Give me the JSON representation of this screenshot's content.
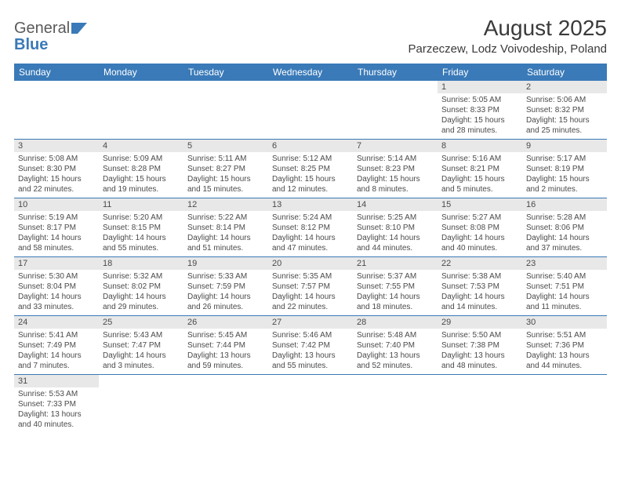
{
  "brand": {
    "part1": "General",
    "part2": "Blue"
  },
  "title": "August 2025",
  "location": "Parzeczew, Lodz Voivodeship, Poland",
  "colors": {
    "header_bg": "#3a7ab8",
    "header_text": "#ffffff",
    "daynum_bg": "#e8e8e8",
    "text": "#4a4a4a",
    "border": "#3a7ab8"
  },
  "day_labels": [
    "Sunday",
    "Monday",
    "Tuesday",
    "Wednesday",
    "Thursday",
    "Friday",
    "Saturday"
  ],
  "weeks": [
    [
      null,
      null,
      null,
      null,
      null,
      {
        "n": "1",
        "sr": "Sunrise: 5:05 AM",
        "ss": "Sunset: 8:33 PM",
        "d1": "Daylight: 15 hours",
        "d2": "and 28 minutes."
      },
      {
        "n": "2",
        "sr": "Sunrise: 5:06 AM",
        "ss": "Sunset: 8:32 PM",
        "d1": "Daylight: 15 hours",
        "d2": "and 25 minutes."
      }
    ],
    [
      {
        "n": "3",
        "sr": "Sunrise: 5:08 AM",
        "ss": "Sunset: 8:30 PM",
        "d1": "Daylight: 15 hours",
        "d2": "and 22 minutes."
      },
      {
        "n": "4",
        "sr": "Sunrise: 5:09 AM",
        "ss": "Sunset: 8:28 PM",
        "d1": "Daylight: 15 hours",
        "d2": "and 19 minutes."
      },
      {
        "n": "5",
        "sr": "Sunrise: 5:11 AM",
        "ss": "Sunset: 8:27 PM",
        "d1": "Daylight: 15 hours",
        "d2": "and 15 minutes."
      },
      {
        "n": "6",
        "sr": "Sunrise: 5:12 AM",
        "ss": "Sunset: 8:25 PM",
        "d1": "Daylight: 15 hours",
        "d2": "and 12 minutes."
      },
      {
        "n": "7",
        "sr": "Sunrise: 5:14 AM",
        "ss": "Sunset: 8:23 PM",
        "d1": "Daylight: 15 hours",
        "d2": "and 8 minutes."
      },
      {
        "n": "8",
        "sr": "Sunrise: 5:16 AM",
        "ss": "Sunset: 8:21 PM",
        "d1": "Daylight: 15 hours",
        "d2": "and 5 minutes."
      },
      {
        "n": "9",
        "sr": "Sunrise: 5:17 AM",
        "ss": "Sunset: 8:19 PM",
        "d1": "Daylight: 15 hours",
        "d2": "and 2 minutes."
      }
    ],
    [
      {
        "n": "10",
        "sr": "Sunrise: 5:19 AM",
        "ss": "Sunset: 8:17 PM",
        "d1": "Daylight: 14 hours",
        "d2": "and 58 minutes."
      },
      {
        "n": "11",
        "sr": "Sunrise: 5:20 AM",
        "ss": "Sunset: 8:15 PM",
        "d1": "Daylight: 14 hours",
        "d2": "and 55 minutes."
      },
      {
        "n": "12",
        "sr": "Sunrise: 5:22 AM",
        "ss": "Sunset: 8:14 PM",
        "d1": "Daylight: 14 hours",
        "d2": "and 51 minutes."
      },
      {
        "n": "13",
        "sr": "Sunrise: 5:24 AM",
        "ss": "Sunset: 8:12 PM",
        "d1": "Daylight: 14 hours",
        "d2": "and 47 minutes."
      },
      {
        "n": "14",
        "sr": "Sunrise: 5:25 AM",
        "ss": "Sunset: 8:10 PM",
        "d1": "Daylight: 14 hours",
        "d2": "and 44 minutes."
      },
      {
        "n": "15",
        "sr": "Sunrise: 5:27 AM",
        "ss": "Sunset: 8:08 PM",
        "d1": "Daylight: 14 hours",
        "d2": "and 40 minutes."
      },
      {
        "n": "16",
        "sr": "Sunrise: 5:28 AM",
        "ss": "Sunset: 8:06 PM",
        "d1": "Daylight: 14 hours",
        "d2": "and 37 minutes."
      }
    ],
    [
      {
        "n": "17",
        "sr": "Sunrise: 5:30 AM",
        "ss": "Sunset: 8:04 PM",
        "d1": "Daylight: 14 hours",
        "d2": "and 33 minutes."
      },
      {
        "n": "18",
        "sr": "Sunrise: 5:32 AM",
        "ss": "Sunset: 8:02 PM",
        "d1": "Daylight: 14 hours",
        "d2": "and 29 minutes."
      },
      {
        "n": "19",
        "sr": "Sunrise: 5:33 AM",
        "ss": "Sunset: 7:59 PM",
        "d1": "Daylight: 14 hours",
        "d2": "and 26 minutes."
      },
      {
        "n": "20",
        "sr": "Sunrise: 5:35 AM",
        "ss": "Sunset: 7:57 PM",
        "d1": "Daylight: 14 hours",
        "d2": "and 22 minutes."
      },
      {
        "n": "21",
        "sr": "Sunrise: 5:37 AM",
        "ss": "Sunset: 7:55 PM",
        "d1": "Daylight: 14 hours",
        "d2": "and 18 minutes."
      },
      {
        "n": "22",
        "sr": "Sunrise: 5:38 AM",
        "ss": "Sunset: 7:53 PM",
        "d1": "Daylight: 14 hours",
        "d2": "and 14 minutes."
      },
      {
        "n": "23",
        "sr": "Sunrise: 5:40 AM",
        "ss": "Sunset: 7:51 PM",
        "d1": "Daylight: 14 hours",
        "d2": "and 11 minutes."
      }
    ],
    [
      {
        "n": "24",
        "sr": "Sunrise: 5:41 AM",
        "ss": "Sunset: 7:49 PM",
        "d1": "Daylight: 14 hours",
        "d2": "and 7 minutes."
      },
      {
        "n": "25",
        "sr": "Sunrise: 5:43 AM",
        "ss": "Sunset: 7:47 PM",
        "d1": "Daylight: 14 hours",
        "d2": "and 3 minutes."
      },
      {
        "n": "26",
        "sr": "Sunrise: 5:45 AM",
        "ss": "Sunset: 7:44 PM",
        "d1": "Daylight: 13 hours",
        "d2": "and 59 minutes."
      },
      {
        "n": "27",
        "sr": "Sunrise: 5:46 AM",
        "ss": "Sunset: 7:42 PM",
        "d1": "Daylight: 13 hours",
        "d2": "and 55 minutes."
      },
      {
        "n": "28",
        "sr": "Sunrise: 5:48 AM",
        "ss": "Sunset: 7:40 PM",
        "d1": "Daylight: 13 hours",
        "d2": "and 52 minutes."
      },
      {
        "n": "29",
        "sr": "Sunrise: 5:50 AM",
        "ss": "Sunset: 7:38 PM",
        "d1": "Daylight: 13 hours",
        "d2": "and 48 minutes."
      },
      {
        "n": "30",
        "sr": "Sunrise: 5:51 AM",
        "ss": "Sunset: 7:36 PM",
        "d1": "Daylight: 13 hours",
        "d2": "and 44 minutes."
      }
    ],
    [
      {
        "n": "31",
        "sr": "Sunrise: 5:53 AM",
        "ss": "Sunset: 7:33 PM",
        "d1": "Daylight: 13 hours",
        "d2": "and 40 minutes."
      },
      null,
      null,
      null,
      null,
      null,
      null
    ]
  ]
}
